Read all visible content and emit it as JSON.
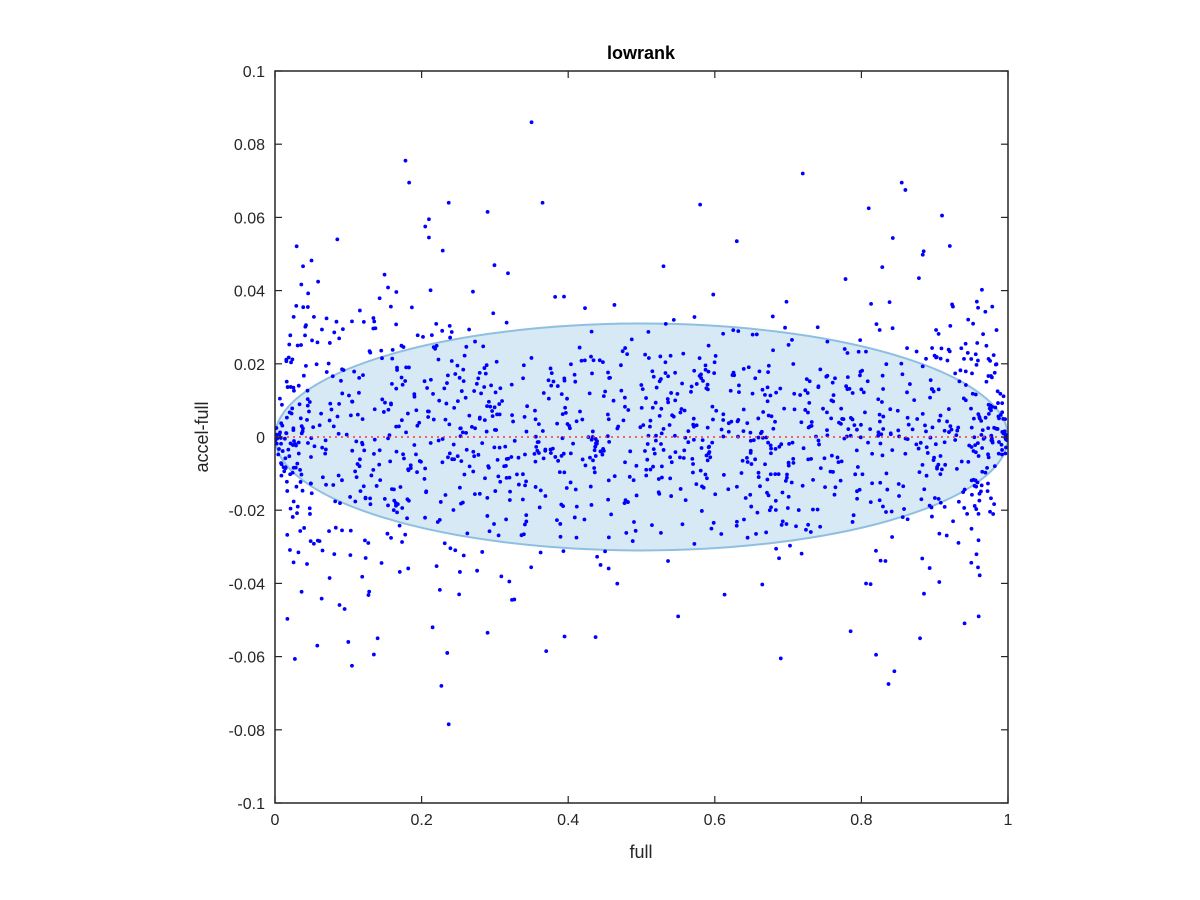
{
  "chart_data": {
    "type": "scatter",
    "title": "lowrank",
    "xlabel": "full",
    "ylabel": "accel-full",
    "xlim": [
      0,
      1
    ],
    "ylim": [
      -0.1,
      0.1
    ],
    "xticks": [
      0,
      0.2,
      0.4,
      0.6,
      0.8,
      1
    ],
    "xtick_labels": [
      "0",
      "0.2",
      "0.4",
      "0.6",
      "0.8",
      "1"
    ],
    "yticks": [
      -0.1,
      -0.08,
      -0.06,
      -0.04,
      -0.02,
      0,
      0.02,
      0.04,
      0.06,
      0.08,
      0.1
    ],
    "ytick_labels": [
      "-0.1",
      "-0.08",
      "-0.06",
      "-0.04",
      "-0.02",
      "0",
      "0.02",
      "0.04",
      "0.06",
      "0.08",
      "0.1"
    ],
    "grid": false,
    "colors": {
      "points": "#0000ff",
      "ellipse_fill": "#d6e9f5",
      "ellipse_stroke": "#8fbfe0",
      "zero_line": "#ff3333",
      "axes": "#262626"
    },
    "ellipse": {
      "center_x": 0.5,
      "center_y": 0.0,
      "semi_axis_x": 0.5,
      "semi_axis_y": 0.031
    },
    "reference_line": {
      "y": 0,
      "style": "dotted"
    },
    "highlight_points": [
      {
        "x": 0.35,
        "y": 0.086
      },
      {
        "x": 0.178,
        "y": 0.0755
      },
      {
        "x": 0.183,
        "y": 0.0695
      },
      {
        "x": 0.72,
        "y": 0.072
      },
      {
        "x": 0.855,
        "y": 0.0695
      },
      {
        "x": 0.86,
        "y": 0.0675
      },
      {
        "x": 0.237,
        "y": 0.064
      },
      {
        "x": 0.365,
        "y": 0.064
      },
      {
        "x": 0.58,
        "y": 0.0635
      },
      {
        "x": 0.81,
        "y": 0.0625
      },
      {
        "x": 0.29,
        "y": 0.0615
      },
      {
        "x": 0.91,
        "y": 0.0605
      },
      {
        "x": 0.21,
        "y": 0.0595
      },
      {
        "x": 0.205,
        "y": 0.0575
      },
      {
        "x": 0.085,
        "y": 0.054
      },
      {
        "x": 0.21,
        "y": 0.0545
      },
      {
        "x": 0.63,
        "y": 0.0535
      },
      {
        "x": 0.105,
        "y": -0.0625
      },
      {
        "x": 0.1,
        "y": -0.056
      },
      {
        "x": 0.227,
        "y": -0.068
      },
      {
        "x": 0.237,
        "y": -0.0785
      },
      {
        "x": 0.69,
        "y": -0.0605
      },
      {
        "x": 0.837,
        "y": -0.0675
      },
      {
        "x": 0.845,
        "y": -0.064
      },
      {
        "x": 0.82,
        "y": -0.0595
      },
      {
        "x": 0.37,
        "y": -0.0585
      },
      {
        "x": 0.235,
        "y": -0.059
      },
      {
        "x": 0.395,
        "y": -0.0545
      },
      {
        "x": 0.29,
        "y": -0.0535
      },
      {
        "x": 0.96,
        "y": -0.049
      },
      {
        "x": 0.55,
        "y": -0.049
      },
      {
        "x": 0.88,
        "y": -0.055
      },
      {
        "x": 0.14,
        "y": -0.055
      },
      {
        "x": 0.215,
        "y": -0.052
      },
      {
        "x": 0.095,
        "y": -0.047
      }
    ],
    "generated_scatter": {
      "count": 1300,
      "seed": 12345,
      "x_range": [
        0,
        1
      ],
      "spread_center": 0.016,
      "spread_edge": 0.024,
      "edge_taper": [
        0.0,
        0.995,
        1.0
      ]
    }
  }
}
